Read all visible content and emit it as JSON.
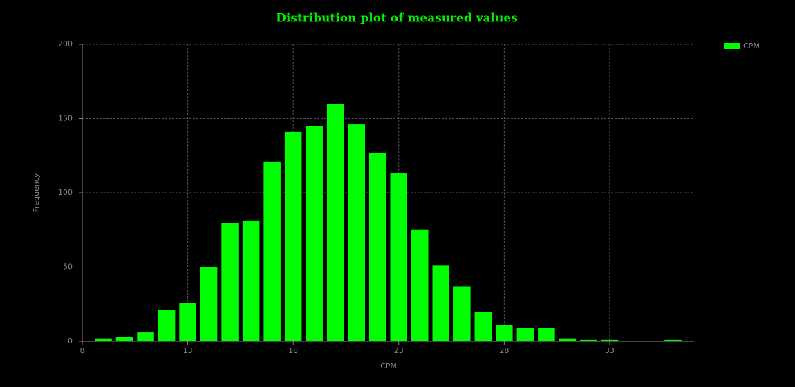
{
  "chart_data": {
    "type": "histogram",
    "title": "Distribution plot of measured values",
    "x_label": "CPM",
    "y_label": "Frequency",
    "bins": [
      8.5,
      9.5,
      10.5,
      11.5,
      12.5,
      13.5,
      14.5,
      15.5,
      16.5,
      17.5,
      18.5,
      19.5,
      20.5,
      21.5,
      22.5,
      23.5,
      24.5,
      25.5,
      26.5,
      27.5,
      28.5,
      29.5,
      30.5,
      31.5,
      32.5,
      33.5,
      34.5,
      35.5,
      36.5
    ],
    "series": [
      {
        "name": "CPM",
        "color": "#00ff00",
        "values": [
          2,
          3,
          6,
          21,
          26,
          50,
          80,
          81,
          121,
          141,
          145,
          160,
          146,
          127,
          113,
          75,
          51,
          37,
          20,
          11,
          9,
          9,
          2,
          1,
          1,
          0,
          0,
          1
        ]
      }
    ],
    "xlim": [
      8,
      37
    ],
    "xticks": [
      8,
      13,
      18,
      23,
      28,
      33
    ],
    "ylim": [
      0,
      200
    ],
    "yticks": [
      0,
      50,
      100,
      150,
      200
    ],
    "grid": true,
    "legend": "top-right"
  }
}
